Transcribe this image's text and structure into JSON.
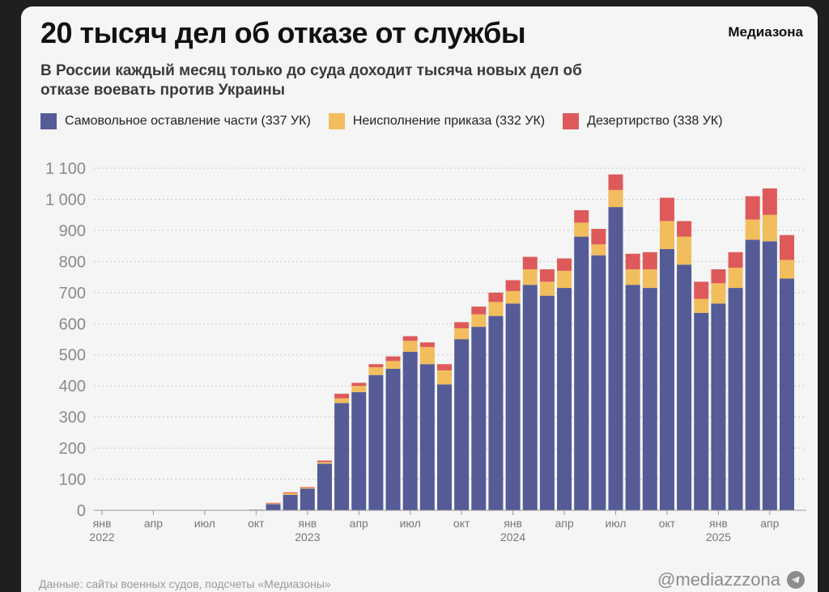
{
  "header": {
    "title": "20 тысяч дел об отказе от службы",
    "brand": "Медиазона",
    "subtitle": "В России каждый месяц только до суда доходит тысяча новых дел об отказе воевать против Украины"
  },
  "footer": {
    "source": "Данные: сайты военных судов, подсчеты «Медиазоны»",
    "handle": "@mediazzzona"
  },
  "chart_data": {
    "type": "bar",
    "stacked": true,
    "title": "20 тысяч дел об отказе от службы",
    "ylim": [
      0,
      1100
    ],
    "yticks": [
      0,
      100,
      200,
      300,
      400,
      500,
      600,
      700,
      800,
      900,
      1000,
      1100
    ],
    "ytick_labels": [
      "0",
      "100",
      "200",
      "300",
      "400",
      "500",
      "600",
      "700",
      "800",
      "900",
      "1 000",
      "1 100"
    ],
    "grid": "horizontal-dotted",
    "colors": {
      "series0": "#545b97",
      "series1": "#f2bd5d",
      "series2": "#de5a5a"
    },
    "x_month_ticks": [
      {
        "index": 0,
        "label": "янв",
        "year": "2022"
      },
      {
        "index": 3,
        "label": "апр"
      },
      {
        "index": 6,
        "label": "июл"
      },
      {
        "index": 9,
        "label": "окт"
      },
      {
        "index": 12,
        "label": "янв",
        "year": "2023"
      },
      {
        "index": 15,
        "label": "апр"
      },
      {
        "index": 18,
        "label": "июл"
      },
      {
        "index": 21,
        "label": "окт"
      },
      {
        "index": 24,
        "label": "янв",
        "year": "2024"
      },
      {
        "index": 27,
        "label": "апр"
      },
      {
        "index": 30,
        "label": "июл"
      },
      {
        "index": 33,
        "label": "окт"
      },
      {
        "index": 36,
        "label": "янв",
        "year": "2025"
      },
      {
        "index": 39,
        "label": "апр"
      }
    ],
    "categories": [
      "2022-01",
      "2022-02",
      "2022-03",
      "2022-04",
      "2022-05",
      "2022-06",
      "2022-07",
      "2022-08",
      "2022-09",
      "2022-10",
      "2022-11",
      "2022-12",
      "2023-01",
      "2023-02",
      "2023-03",
      "2023-04",
      "2023-05",
      "2023-06",
      "2023-07",
      "2023-08",
      "2023-09",
      "2023-10",
      "2023-11",
      "2023-12",
      "2024-01",
      "2024-02",
      "2024-03",
      "2024-04",
      "2024-05",
      "2024-06",
      "2024-07",
      "2024-08",
      "2024-09",
      "2024-10",
      "2024-11",
      "2024-12",
      "2025-01",
      "2025-02",
      "2025-03",
      "2025-04",
      "2025-05"
    ],
    "series": [
      {
        "name": "Самовольное оставление части (337 УК)",
        "values": [
          0,
          0,
          0,
          0,
          0,
          0,
          0,
          0,
          0,
          2,
          20,
          50,
          70,
          150,
          345,
          380,
          435,
          455,
          510,
          470,
          405,
          550,
          590,
          625,
          665,
          725,
          690,
          715,
          880,
          820,
          975,
          725,
          715,
          840,
          790,
          635,
          665,
          715,
          870,
          865,
          745
        ]
      },
      {
        "name": "Неисполнение приказа (332 УК)",
        "values": [
          0,
          0,
          0,
          0,
          0,
          0,
          0,
          0,
          0,
          0,
          2,
          5,
          3,
          5,
          15,
          20,
          25,
          25,
          35,
          55,
          45,
          35,
          40,
          45,
          40,
          50,
          45,
          55,
          45,
          35,
          55,
          50,
          60,
          90,
          90,
          45,
          65,
          65,
          65,
          85,
          60
        ]
      },
      {
        "name": "Дезертирство (338 УК)",
        "values": [
          0,
          0,
          0,
          0,
          0,
          0,
          0,
          0,
          0,
          0,
          2,
          3,
          2,
          5,
          15,
          10,
          10,
          15,
          15,
          15,
          20,
          20,
          25,
          30,
          35,
          40,
          40,
          40,
          40,
          50,
          50,
          50,
          55,
          75,
          50,
          55,
          45,
          50,
          75,
          85,
          80
        ]
      }
    ]
  }
}
